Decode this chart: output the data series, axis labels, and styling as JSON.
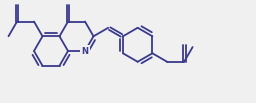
{
  "bg_color": "#f0f0f0",
  "line_color": "#3a3a8c",
  "lw": 1.3,
  "figsize": [
    2.56,
    1.03
  ],
  "dpi": 100
}
